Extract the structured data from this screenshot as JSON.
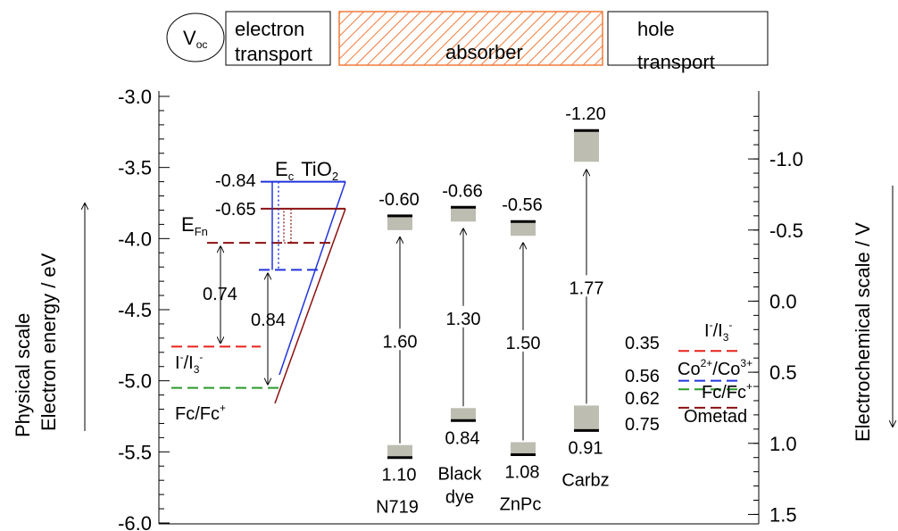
{
  "chart_data": {
    "type": "energy-level-diagram",
    "left_axis": {
      "label_line1": "Physical scale",
      "label_line2": "Electron energy / eV",
      "ylim": [
        -6.0,
        -3.0
      ],
      "ticks": [
        "-3.0",
        "-3.5",
        "-4.0",
        "-4.5",
        "-5.0",
        "-5.5",
        "-6.0"
      ],
      "tick_values": [
        -3.0,
        -3.5,
        -4.0,
        -4.5,
        -5.0,
        -5.5,
        -6.0
      ]
    },
    "right_axis": {
      "label": "Electrochemical scale / V",
      "ticks": [
        "-1.0",
        "-0.5",
        "0.0",
        "0.5",
        "1.0",
        "1.5"
      ],
      "tick_values": [
        -1.0,
        -0.5,
        0.0,
        0.5,
        1.0,
        1.5
      ]
    },
    "header": {
      "voc": "V",
      "voc_sub": "oc",
      "electron_transport_1": "electron",
      "electron_transport_2": "transport",
      "absorber": "absorber",
      "hole_transport_1": "hole",
      "hole_transport_2": "transport"
    },
    "tio2": {
      "ec_label": "E",
      "ec_sub": "c",
      "name": "TiO",
      "name_sub": "2",
      "ec_energy": -3.6,
      "ec_shift_energy": -3.79,
      "efn_energy": -4.03,
      "efn_blue_energy": -4.22,
      "efn_label": "E",
      "efn_sub": "Fn",
      "val_084": "-0.84",
      "val_065": "-0.65"
    },
    "redox_left": {
      "iodide_energy": -4.76,
      "fc_energy": -5.05,
      "val_074": "0.74",
      "val_084": "0.84",
      "iodide_label": {
        "a": "I",
        "b": "-",
        "c": "/I",
        "d": "3",
        "e": "-"
      },
      "fc_label": {
        "a": "Fc/Fc",
        "b": "+"
      }
    },
    "dyes": [
      {
        "name": "N719",
        "lumo": -3.84,
        "homo": -5.54,
        "top_label": "-0.60",
        "gap_label": "1.60",
        "bottom_label": "1.10"
      },
      {
        "name_line1": "Black",
        "name_line2": "dye",
        "lumo": -3.78,
        "homo": -5.28,
        "top_label": "-0.66",
        "gap_label": "1.30",
        "bottom_label": "0.84"
      },
      {
        "name": "ZnPc",
        "lumo": -3.88,
        "homo": -5.52,
        "top_label": "-0.56",
        "gap_label": "1.50",
        "bottom_label": "1.08"
      },
      {
        "name": "Carbz",
        "lumo": -3.24,
        "homo": -5.35,
        "top_label": "-1.20",
        "gap_label": "1.77",
        "bottom_label": "0.91"
      }
    ],
    "redox_right": [
      {
        "value": "0.35",
        "energy": -4.79,
        "color": "#e8221c",
        "label_a": "I",
        "label_b": "-",
        "label_c": "/I",
        "label_d": "3",
        "label_e": "-"
      },
      {
        "value": "0.56",
        "energy": -5.0,
        "color": "#2233dd",
        "label_a": "Co",
        "label_b": "2+",
        "label_c": "/Co",
        "label_d": "3+"
      },
      {
        "value": "0.62",
        "energy": -5.06,
        "color": "#2a9a2a",
        "label_a": "Fc/Fc",
        "label_b": "+"
      },
      {
        "value": "0.75",
        "energy": -5.19,
        "color": "#8b1010",
        "label_a": "Ometad"
      }
    ],
    "colors": {
      "blue": "#2233dd",
      "darkred": "#8b1010",
      "red": "#e8221c",
      "green": "#2a9a2a",
      "hatch": "#f07a3a",
      "box": "#bdbdb2"
    }
  }
}
